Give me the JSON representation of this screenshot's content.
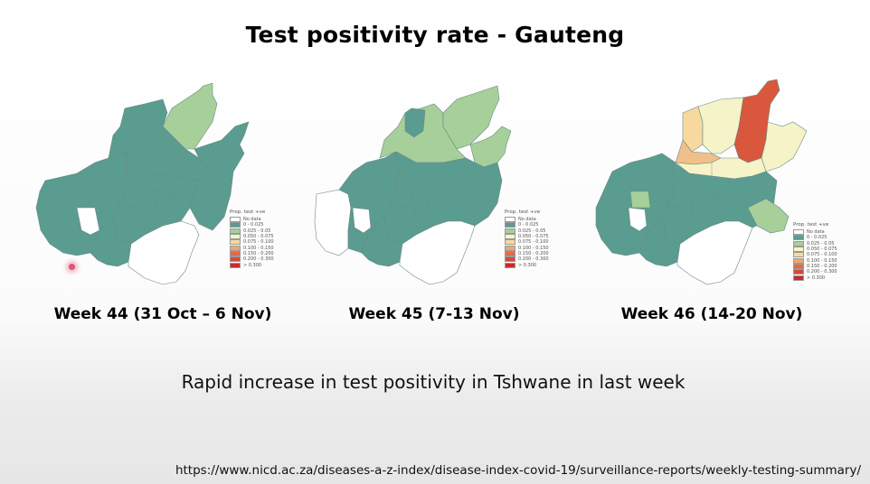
{
  "title": "Test positivity rate - Gauteng",
  "colors": {
    "nodata": "#ffffff",
    "c1": "#5a9c8f",
    "c2": "#a6cf9a",
    "c3": "#f6f3c8",
    "c4": "#f7d9a0",
    "c5": "#efa86a",
    "c6": "#e26a4c",
    "c7": "#c92a2a"
  },
  "panels": [
    {
      "week_label": "Week 44 (31 Oct – 6 Nov)",
      "legend": {
        "title": "Prop. test +ve",
        "items": [
          "No data",
          "0 - 0.025",
          "0.025 - 0.05",
          "0.050 - 0.075",
          "0.075 - 0.100",
          "0.100 - 0.150",
          "0.150 - 0.200",
          "0.200 - 0.300",
          "> 0.300"
        ]
      }
    },
    {
      "week_label": "Week 45 (7-13 Nov)",
      "legend": {
        "title": "Prop. test +ve",
        "items": [
          "No data",
          "0 - 0.025",
          "0.025 - 0.05",
          "0.050 - 0.075",
          "0.075 - 0.100",
          "0.100 - 0.150",
          "0.150 - 0.200",
          "0.200 - 0.300",
          "> 0.300"
        ]
      }
    },
    {
      "week_label": "Week 46 (14-20 Nov)",
      "legend": {
        "title": "Prop. test +ve",
        "items": [
          "No data",
          "0 - 0.025",
          "0.025 - 0.05",
          "0.050 - 0.075",
          "0.075 - 0.100",
          "0.100 - 0.150",
          "0.150 - 0.200",
          "0.200 - 0.300",
          "> 0.300"
        ]
      }
    }
  ],
  "subtitle": "Rapid increase in test positivity in Tshwane in last week",
  "source_url": "https://www.nicd.ac.za/diseases-a-z-index/disease-index-covid-19/surveillance-reports/weekly-testing-summary/"
}
